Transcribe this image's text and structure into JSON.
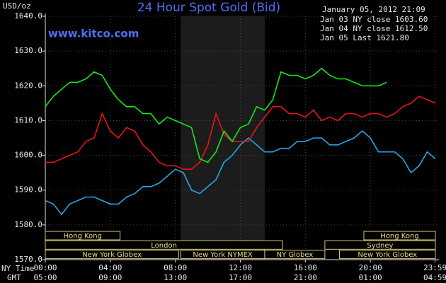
{
  "chart_data": {
    "type": "line",
    "title": "24 Hour Spot Gold (Bid)",
    "y_label": "USD/oz",
    "timestamp": "January 05, 2012 21:09",
    "site": "www.kitco.com",
    "x_row_label": "NY Time",
    "x2_row_label": "GMT",
    "xlim": [
      0,
      24
    ],
    "ylim": [
      1570,
      1640
    ],
    "xticks": [
      {
        "value": 0,
        "label": "00:00"
      },
      {
        "value": 4,
        "label": "04:00"
      },
      {
        "value": 8,
        "label": "08:00"
      },
      {
        "value": 12,
        "label": "12:00"
      },
      {
        "value": 16,
        "label": "16:00"
      },
      {
        "value": 20,
        "label": "20:00"
      },
      {
        "value": 23.98,
        "label": "23:59"
      }
    ],
    "x2ticks": [
      {
        "value": 0,
        "label": "05:00"
      },
      {
        "value": 4,
        "label": "09:00"
      },
      {
        "value": 8,
        "label": "13:00"
      },
      {
        "value": 12,
        "label": "17:00"
      },
      {
        "value": 16,
        "label": "21:00"
      },
      {
        "value": 20,
        "label": "01:00"
      },
      {
        "value": 23.98,
        "label": "04:59"
      }
    ],
    "yticks": [
      {
        "value": 1640,
        "label": "1640.0"
      },
      {
        "value": 1630,
        "label": "1630.0"
      },
      {
        "value": 1620,
        "label": "1620.0"
      },
      {
        "value": 1610,
        "label": "1610.0"
      },
      {
        "value": 1600,
        "label": "1600.0"
      },
      {
        "value": 1590,
        "label": "1590.0"
      },
      {
        "value": 1580,
        "label": "1580.0"
      },
      {
        "value": 1570,
        "label": "1570.0"
      }
    ],
    "grid": true,
    "highlight_span": [
      8.33,
      13.5
    ],
    "x": [
      0,
      0.5,
      1,
      1.5,
      2,
      2.5,
      3,
      3.5,
      4,
      4.5,
      5,
      5.5,
      6,
      6.5,
      7,
      7.5,
      8,
      8.5,
      9,
      9.5,
      10,
      10.5,
      11,
      11.5,
      12,
      12.5,
      13,
      13.5,
      14,
      14.5,
      15,
      15.5,
      16,
      16.5,
      17,
      17.5,
      18,
      18.5,
      19,
      19.5,
      20,
      20.5,
      21,
      21.5,
      22,
      22.5,
      23,
      23.5,
      24
    ],
    "series": [
      {
        "name": "Jan 03 NY close 1603.60",
        "color": "#22a8e8",
        "values": [
          1587,
          1586,
          1583,
          1586,
          1587,
          1588,
          1588,
          1587,
          1586,
          1586,
          1588,
          1589,
          1591,
          1591,
          1592,
          1594,
          1596,
          1595,
          1590,
          1589,
          1591,
          1593,
          1598,
          1600,
          1603,
          1605,
          1603,
          1601,
          1601,
          1602,
          1602,
          1604,
          1604,
          1605,
          1605,
          1603,
          1603,
          1604,
          1605,
          1607,
          1605,
          1601,
          1601,
          1601,
          1599,
          1595,
          1597,
          1601,
          1599
        ]
      },
      {
        "name": "Jan 04 NY close 1612.50",
        "color": "#e81414",
        "values": [
          1598,
          1598,
          1599,
          1600,
          1601,
          1604,
          1605,
          1612,
          1607,
          1605,
          1608,
          1607,
          1603,
          1601,
          1598,
          1597,
          1597,
          1596,
          1596,
          1598,
          1603,
          1612,
          1606,
          1604,
          1604,
          1604,
          1608,
          1611,
          1614,
          1614,
          1612,
          1612,
          1611,
          1613,
          1610,
          1611,
          1610,
          1612,
          1612,
          1611,
          1612,
          1612,
          1611,
          1612,
          1614,
          1615,
          1617,
          1616,
          1615
        ]
      },
      {
        "name": "Jan 05 Last 1621.80",
        "color": "#14e814",
        "values": [
          1614,
          1617,
          1619,
          1621,
          1621,
          1622,
          1624,
          1623,
          1619,
          1616,
          1614,
          1614,
          1612,
          1612,
          1609,
          1611,
          1610,
          1609,
          1608,
          1599,
          1598,
          1601,
          1607,
          1604,
          1608,
          1609,
          1614,
          1613,
          1616,
          1624,
          1623,
          1623,
          1622,
          1623,
          1625,
          1623,
          1622,
          1622,
          1621,
          1620,
          1620,
          1620,
          1621,
          null,
          null,
          null,
          null,
          null,
          null
        ]
      }
    ],
    "session_rows": [
      [
        {
          "name": "Hong Kong",
          "start": 0,
          "end": 4.6
        },
        {
          "name": "Hong Kong",
          "start": 19.6,
          "end": 24
        }
      ],
      [
        {
          "name": "London",
          "start": 0,
          "end": 14.6
        },
        {
          "name": "Sydney",
          "start": 17.2,
          "end": 24
        }
      ],
      [
        {
          "name": "New York Globex",
          "start": 0,
          "end": 8.2
        },
        {
          "name": "New York NYMEX",
          "start": 8.33,
          "end": 13.5
        },
        {
          "name": "NY Globex",
          "start": 13.5,
          "end": 17.2
        },
        {
          "name": "New York Globex",
          "start": 18.1,
          "end": 24
        }
      ]
    ]
  }
}
